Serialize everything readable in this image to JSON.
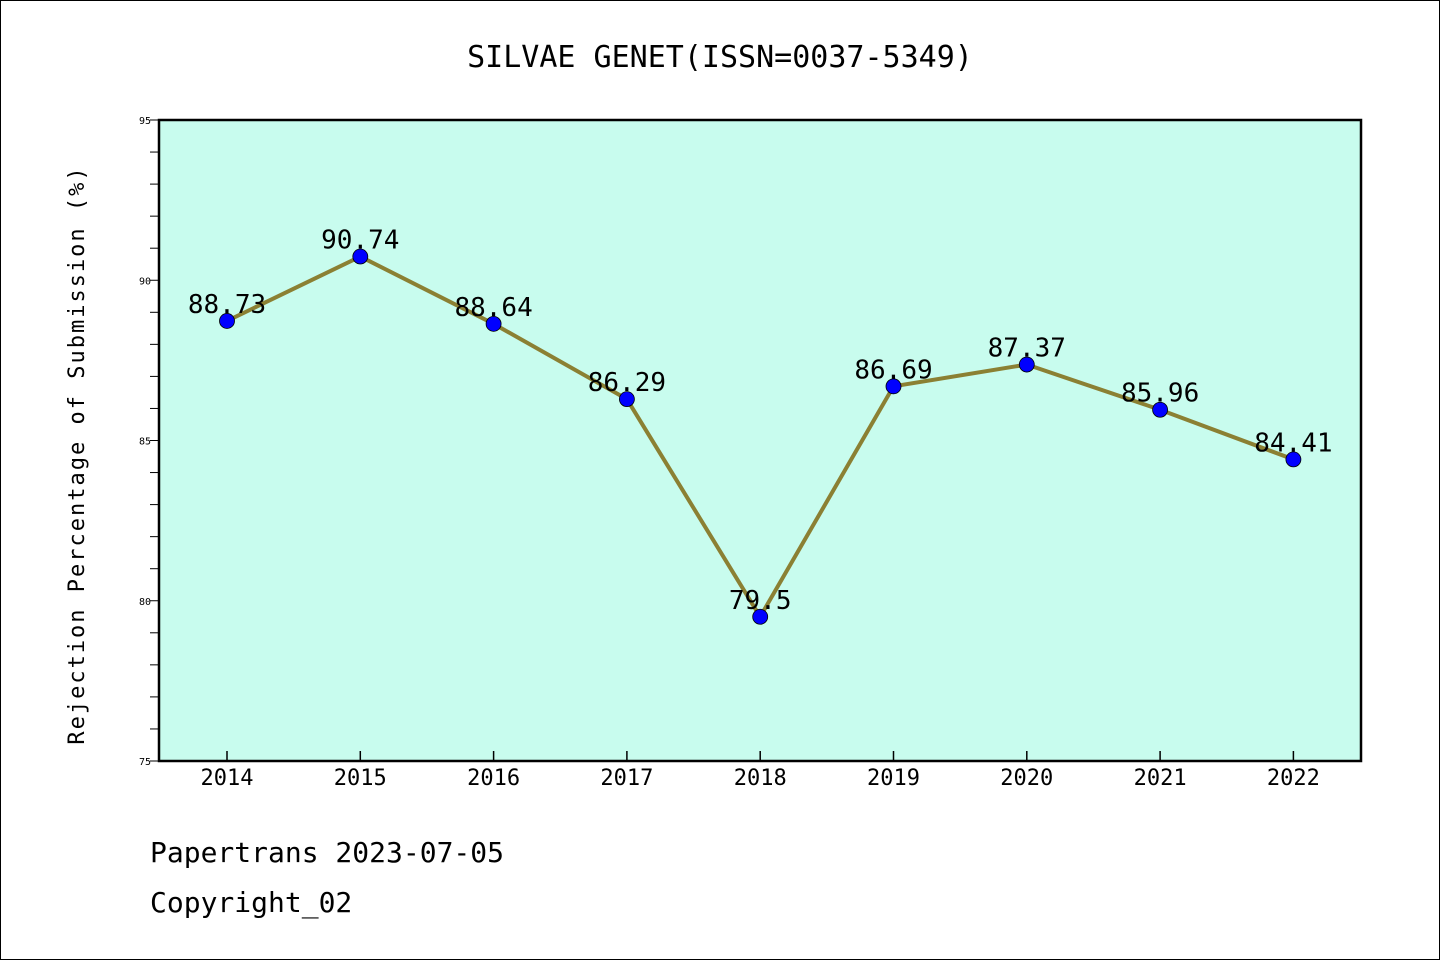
{
  "chart_data": {
    "type": "line",
    "title": "SILVAE GENET(ISSN=0037-5349)",
    "xlabel": "",
    "ylabel": "Rejection Percentage of Submission (%)",
    "categories": [
      "2014",
      "2015",
      "2016",
      "2017",
      "2018",
      "2019",
      "2020",
      "2021",
      "2022"
    ],
    "series": [
      {
        "values": [
          88.73,
          90.74,
          88.64,
          86.29,
          79.5,
          86.69,
          87.37,
          85.96,
          84.41
        ],
        "labels": [
          "88.73",
          "90.74",
          "88.64",
          "86.29",
          "79.5",
          "86.69",
          "87.37",
          "85.96",
          "84.41"
        ]
      }
    ],
    "ylim": [
      75,
      95
    ],
    "yticks": [
      "75",
      "80",
      "85",
      "90",
      "95"
    ],
    "grid": false,
    "legend": "none",
    "colors": {
      "plot_background": "#c8fcee",
      "line": "#8b8033",
      "marker": "#0000ff"
    }
  },
  "footer": {
    "line1": "Papertrans 2023-07-05",
    "line2": "Copyright_02"
  }
}
